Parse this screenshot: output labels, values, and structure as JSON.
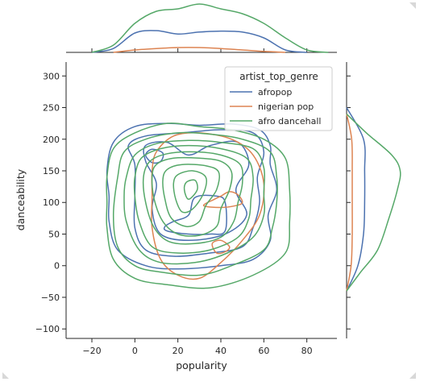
{
  "chart_data": {
    "type": "kde-jointplot",
    "xlabel": "popularity",
    "ylabel": "danceability",
    "xlim": [
      -32,
      94
    ],
    "ylim": [
      -115,
      322
    ],
    "xticks": [
      -20,
      0,
      20,
      40,
      60,
      80
    ],
    "yticks": [
      -100,
      -50,
      0,
      50,
      100,
      150,
      200,
      250,
      300
    ],
    "xtick_labels": [
      "−20",
      "0",
      "20",
      "40",
      "60",
      "80"
    ],
    "ytick_labels": [
      "−100",
      "−50",
      "0",
      "50",
      "100",
      "150",
      "200",
      "250",
      "300"
    ],
    "legend": {
      "title": "artist_top_genre",
      "position": "top-right",
      "entries": [
        "afropop",
        "nigerian pop",
        "afro dancehall"
      ]
    },
    "series": [
      {
        "name": "afropop",
        "color": "#4c72b0",
        "contours": [
          [
            [
              -13,
              150
            ],
            [
              -10,
              195
            ],
            [
              0,
              220
            ],
            [
              15,
              225
            ],
            [
              30,
              222
            ],
            [
              45,
              224
            ],
            [
              58,
              215
            ],
            [
              63,
              190
            ],
            [
              63,
              160
            ],
            [
              66,
              120
            ],
            [
              62,
              80
            ],
            [
              63,
              40
            ],
            [
              55,
              10
            ],
            [
              40,
              0
            ],
            [
              20,
              -5
            ],
            [
              5,
              0
            ],
            [
              -8,
              25
            ],
            [
              -12,
              70
            ],
            [
              -12,
              110
            ]
          ],
          [
            [
              0,
              160
            ],
            [
              -3,
              190
            ],
            [
              5,
              205
            ],
            [
              22,
              210
            ],
            [
              40,
              215
            ],
            [
              55,
              210
            ],
            [
              60,
              180
            ],
            [
              57,
              140
            ],
            [
              58,
              100
            ],
            [
              55,
              60
            ],
            [
              50,
              30
            ],
            [
              35,
              20
            ],
            [
              18,
              15
            ],
            [
              5,
              25
            ],
            [
              0,
              60
            ],
            [
              0,
              110
            ]
          ],
          [
            [
              5,
              165
            ],
            [
              5,
              190
            ],
            [
              15,
              195
            ],
            [
              25,
              175
            ],
            [
              35,
              190
            ],
            [
              48,
              195
            ],
            [
              53,
              160
            ],
            [
              47,
              120
            ],
            [
              52,
              80
            ],
            [
              42,
              50
            ],
            [
              25,
              40
            ],
            [
              12,
              50
            ],
            [
              8,
              90
            ],
            [
              10,
              130
            ]
          ],
          [
            [
              15,
              55
            ],
            [
              25,
              50
            ],
            [
              35,
              50
            ],
            [
              42,
              55
            ],
            [
              42,
              100
            ],
            [
              38,
              110
            ],
            [
              28,
              108
            ],
            [
              25,
              80
            ],
            [
              18,
              70
            ],
            [
              14,
              62
            ]
          ],
          [
            [
              5,
              175
            ],
            [
              8,
              163
            ],
            [
              12,
              165
            ],
            [
              13,
              178
            ],
            [
              8,
              184
            ]
          ]
        ]
      },
      {
        "name": "nigerian pop",
        "color": "#dd8452",
        "contours": [
          [
            [
              8,
              150
            ],
            [
              10,
              180
            ],
            [
              18,
              205
            ],
            [
              30,
              210
            ],
            [
              45,
              200
            ],
            [
              55,
              175
            ],
            [
              60,
              130
            ],
            [
              58,
              80
            ],
            [
              50,
              40
            ],
            [
              40,
              5
            ],
            [
              30,
              -20
            ],
            [
              20,
              -15
            ],
            [
              12,
              10
            ],
            [
              8,
              60
            ],
            [
              8,
              110
            ]
          ],
          [
            [
              32,
              95
            ],
            [
              40,
              92
            ],
            [
              47,
              95
            ],
            [
              50,
              100
            ],
            [
              48,
              112
            ],
            [
              44,
              117
            ],
            [
              40,
              110
            ],
            [
              37,
              105
            ]
          ],
          [
            [
              36,
              35
            ],
            [
              40,
              40
            ],
            [
              44,
              30
            ],
            [
              42,
              22
            ],
            [
              38,
              20
            ]
          ]
        ]
      },
      {
        "name": "afro dancehall",
        "color": "#55a868",
        "contours": [
          [
            [
              -13,
              140
            ],
            [
              -10,
              185
            ],
            [
              0,
              210
            ],
            [
              15,
              225
            ],
            [
              30,
              220
            ],
            [
              45,
              215
            ],
            [
              60,
              200
            ],
            [
              70,
              170
            ],
            [
              72,
              120
            ],
            [
              72,
              70
            ],
            [
              70,
              20
            ],
            [
              55,
              -15
            ],
            [
              35,
              -35
            ],
            [
              15,
              -30
            ],
            [
              0,
              -20
            ],
            [
              -10,
              10
            ],
            [
              -13,
              60
            ],
            [
              -13,
              100
            ]
          ],
          [
            [
              -8,
              140
            ],
            [
              -5,
              180
            ],
            [
              5,
              200
            ],
            [
              20,
              210
            ],
            [
              35,
              208
            ],
            [
              50,
              200
            ],
            [
              63,
              180
            ],
            [
              66,
              140
            ],
            [
              66,
              100
            ],
            [
              64,
              60
            ],
            [
              60,
              25
            ],
            [
              45,
              0
            ],
            [
              30,
              -15
            ],
            [
              12,
              -10
            ],
            [
              0,
              0
            ],
            [
              -8,
              30
            ],
            [
              -10,
              80
            ]
          ],
          [
            [
              -4,
              140
            ],
            [
              0,
              175
            ],
            [
              10,
              193
            ],
            [
              25,
              198
            ],
            [
              40,
              195
            ],
            [
              55,
              185
            ],
            [
              60,
              155
            ],
            [
              60,
              115
            ],
            [
              60,
              80
            ],
            [
              55,
              45
            ],
            [
              43,
              20
            ],
            [
              28,
              5
            ],
            [
              12,
              5
            ],
            [
              2,
              25
            ],
            [
              -4,
              70
            ],
            [
              -5,
              110
            ]
          ],
          [
            [
              0,
              140
            ],
            [
              3,
              170
            ],
            [
              12,
              185
            ],
            [
              25,
              190
            ],
            [
              40,
              185
            ],
            [
              52,
              170
            ],
            [
              55,
              140
            ],
            [
              54,
              105
            ],
            [
              53,
              75
            ],
            [
              48,
              45
            ],
            [
              35,
              25
            ],
            [
              20,
              20
            ],
            [
              8,
              30
            ],
            [
              2,
              70
            ],
            [
              0,
              110
            ]
          ],
          [
            [
              4,
              140
            ],
            [
              7,
              165
            ],
            [
              15,
              177
            ],
            [
              28,
              180
            ],
            [
              40,
              175
            ],
            [
              49,
              160
            ],
            [
              50,
              130
            ],
            [
              48,
              100
            ],
            [
              46,
              70
            ],
            [
              40,
              45
            ],
            [
              28,
              35
            ],
            [
              16,
              38
            ],
            [
              9,
              60
            ],
            [
              5,
              100
            ]
          ],
          [
            [
              8,
              140
            ],
            [
              10,
              160
            ],
            [
              18,
              170
            ],
            [
              30,
              170
            ],
            [
              40,
              165
            ],
            [
              45,
              148
            ],
            [
              44,
              120
            ],
            [
              40,
              90
            ],
            [
              38,
              62
            ],
            [
              30,
              48
            ],
            [
              20,
              50
            ],
            [
              13,
              70
            ],
            [
              9,
              105
            ]
          ],
          [
            [
              13,
              135
            ],
            [
              15,
              152
            ],
            [
              22,
              160
            ],
            [
              33,
              158
            ],
            [
              39,
              148
            ],
            [
              38,
              120
            ],
            [
              33,
              95
            ],
            [
              30,
              70
            ],
            [
              24,
              62
            ],
            [
              17,
              75
            ],
            [
              14,
              105
            ]
          ],
          [
            [
              18,
              130
            ],
            [
              20,
              144
            ],
            [
              27,
              150
            ],
            [
              33,
              140
            ],
            [
              32,
              115
            ],
            [
              27,
              90
            ],
            [
              22,
              85
            ],
            [
              19,
              105
            ]
          ],
          [
            [
              23,
              120
            ],
            [
              24,
              132
            ],
            [
              28,
              135
            ],
            [
              29,
              120
            ],
            [
              25,
              105
            ]
          ]
        ]
      }
    ],
    "marginal_x": [
      {
        "name": "afropop",
        "color": "#4c72b0",
        "x": [
          -20,
          -10,
          0,
          10,
          20,
          30,
          40,
          50,
          60,
          70,
          80
        ],
        "density": [
          0.0,
          0.08,
          0.4,
          0.45,
          0.38,
          0.42,
          0.44,
          0.42,
          0.3,
          0.05,
          0.0
        ]
      },
      {
        "name": "nigerian pop",
        "color": "#dd8452",
        "x": [
          -10,
          0,
          10,
          20,
          30,
          40,
          50,
          60,
          70
        ],
        "density": [
          0.0,
          0.05,
          0.08,
          0.1,
          0.1,
          0.08,
          0.05,
          0.02,
          0.0
        ]
      },
      {
        "name": "afro dancehall",
        "color": "#55a868",
        "x": [
          -20,
          -10,
          0,
          10,
          20,
          30,
          40,
          50,
          60,
          70,
          80,
          90
        ],
        "density": [
          0.0,
          0.15,
          0.6,
          0.85,
          0.9,
          1.0,
          0.9,
          0.8,
          0.6,
          0.3,
          0.05,
          0.0
        ]
      }
    ],
    "marginal_y": [
      {
        "name": "afropop",
        "color": "#4c72b0",
        "y": [
          -40,
          0,
          50,
          100,
          150,
          200,
          250
        ],
        "density": [
          0.0,
          0.2,
          0.3,
          0.32,
          0.32,
          0.3,
          0.0
        ]
      },
      {
        "name": "nigerian pop",
        "color": "#dd8452",
        "y": [
          -40,
          0,
          50,
          100,
          150,
          200,
          240
        ],
        "density": [
          0.0,
          0.08,
          0.1,
          0.1,
          0.1,
          0.09,
          0.0
        ]
      },
      {
        "name": "afro dancehall",
        "color": "#55a868",
        "y": [
          -40,
          -10,
          25,
          75,
          120,
          150,
          175,
          210,
          240
        ],
        "density": [
          0.0,
          0.25,
          0.55,
          0.75,
          0.9,
          0.95,
          0.8,
          0.35,
          0.0
        ]
      }
    ]
  }
}
